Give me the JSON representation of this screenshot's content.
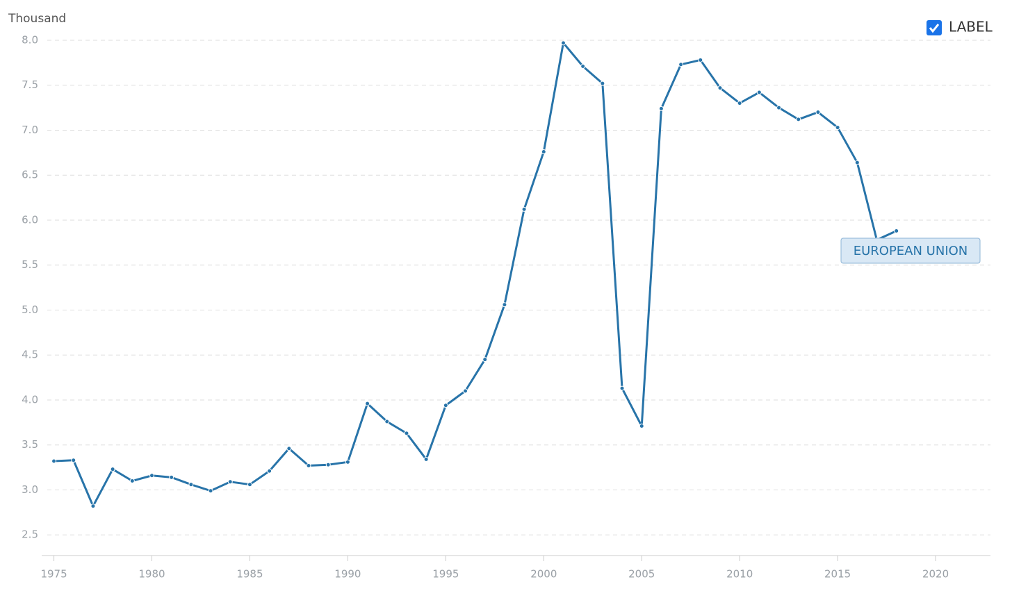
{
  "chart_data": {
    "type": "line",
    "y_axis_label": "Thousand",
    "toggle_label": "LABEL",
    "x": [
      1975,
      1976,
      1977,
      1978,
      1979,
      1980,
      1981,
      1982,
      1983,
      1984,
      1985,
      1986,
      1987,
      1988,
      1989,
      1990,
      1991,
      1992,
      1993,
      1994,
      1995,
      1996,
      1997,
      1998,
      1999,
      2000,
      2001,
      2002,
      2003,
      2004,
      2005,
      2006,
      2007,
      2008,
      2009,
      2010,
      2011,
      2012,
      2013,
      2014,
      2015,
      2016,
      2017,
      2018
    ],
    "series": [
      {
        "name": "EUROPEAN UNION",
        "color": "#2874a9",
        "values": [
          3.32,
          3.33,
          2.82,
          3.23,
          3.1,
          3.16,
          3.14,
          3.06,
          2.99,
          3.09,
          3.06,
          3.21,
          3.46,
          3.27,
          3.28,
          3.31,
          3.96,
          3.76,
          3.63,
          3.34,
          3.94,
          4.1,
          4.45,
          5.06,
          6.12,
          6.76,
          7.97,
          7.71,
          7.52,
          4.13,
          3.71,
          7.24,
          7.73,
          7.78,
          7.47,
          7.3,
          7.42,
          7.25,
          7.12,
          7.2,
          7.03,
          6.64,
          5.78,
          5.88
        ]
      }
    ],
    "xlim": [
      1974.2,
      2022.8
    ],
    "xticks": [
      1975,
      1980,
      1985,
      1990,
      1995,
      2000,
      2005,
      2010,
      2015,
      2020
    ],
    "ylim": [
      2.27,
      8.1
    ],
    "yticks": [
      {
        "value": 2.5,
        "label": "2.5"
      },
      {
        "value": 3,
        "label": "3.0"
      },
      {
        "value": 3.5,
        "label": "3.5"
      },
      {
        "value": 4,
        "label": "4.0"
      },
      {
        "value": 4.5,
        "label": "4.5"
      },
      {
        "value": 5,
        "label": "5.0"
      },
      {
        "value": 5.5,
        "label": "5.5"
      },
      {
        "value": 6,
        "label": "6.0"
      },
      {
        "value": 6.5,
        "label": "6.5"
      },
      {
        "value": 7,
        "label": "7.0"
      },
      {
        "value": 7.5,
        "label": "7.5"
      },
      {
        "value": 8,
        "label": "8.0"
      }
    ],
    "grid": true
  }
}
